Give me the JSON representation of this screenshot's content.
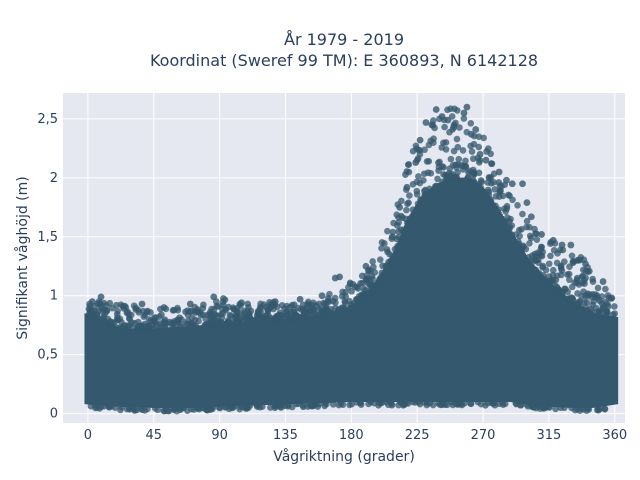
{
  "chart_data": {
    "type": "scatter",
    "title_lines": [
      "År 1979 - 2019",
      "Koordinat (Sweref 99 TM): E 360893, N 6142128"
    ],
    "xlabel": "Vågriktning (grader)",
    "ylabel": "Signifikant våghöjd (m)",
    "xlim": [
      -17,
      367
    ],
    "ylim": [
      -0.08,
      2.72
    ],
    "x_ticks": [
      0,
      45,
      90,
      135,
      180,
      225,
      270,
      315,
      360
    ],
    "x_tick_labels": [
      "0",
      "45",
      "90",
      "135",
      "180",
      "225",
      "270",
      "315",
      "360"
    ],
    "y_ticks": [
      0,
      0.5,
      1,
      1.5,
      2,
      2.5
    ],
    "y_tick_labels": [
      "0",
      "0,5",
      "1",
      "1,5",
      "2",
      "2,5"
    ],
    "grid": true,
    "legend": false,
    "marker_color": "#34586e",
    "plot_background": "#e5e8f0",
    "envelope": {
      "x": [
        0,
        20,
        45,
        70,
        90,
        110,
        135,
        160,
        180,
        195,
        210,
        220,
        230,
        240,
        250,
        260,
        270,
        280,
        290,
        300,
        315,
        330,
        345,
        360
      ],
      "y_min": [
        0.08,
        0.06,
        0.05,
        0.05,
        0.06,
        0.07,
        0.08,
        0.09,
        0.1,
        0.1,
        0.1,
        0.1,
        0.1,
        0.1,
        0.1,
        0.1,
        0.1,
        0.1,
        0.1,
        0.08,
        0.06,
        0.05,
        0.05,
        0.08
      ],
      "y_dense_max": [
        0.85,
        0.72,
        0.72,
        0.74,
        0.76,
        0.78,
        0.8,
        0.84,
        0.9,
        1.05,
        1.35,
        1.65,
        1.85,
        1.95,
        2.0,
        2.0,
        1.9,
        1.72,
        1.5,
        1.3,
        1.1,
        0.95,
        0.85,
        0.82
      ],
      "y_outlier_max": [
        0.98,
        0.93,
        0.9,
        0.9,
        0.99,
        0.94,
        0.95,
        0.99,
        1.15,
        1.3,
        1.75,
        2.2,
        2.45,
        2.55,
        2.6,
        2.55,
        2.35,
        2.1,
        1.85,
        1.65,
        1.48,
        1.4,
        1.25,
        0.95
      ]
    },
    "outlier_points": [
      {
        "x": 231,
        "y": 2.47
      },
      {
        "x": 235,
        "y": 2.45
      },
      {
        "x": 238,
        "y": 2.58
      },
      {
        "x": 242,
        "y": 2.52
      },
      {
        "x": 246,
        "y": 2.49
      },
      {
        "x": 250,
        "y": 2.43
      },
      {
        "x": 257,
        "y": 2.55
      },
      {
        "x": 259,
        "y": 2.6
      },
      {
        "x": 265,
        "y": 2.41
      },
      {
        "x": 262,
        "y": 2.37
      },
      {
        "x": 268,
        "y": 2.2
      },
      {
        "x": 272,
        "y": 2.15
      },
      {
        "x": 276,
        "y": 2.12
      },
      {
        "x": 281,
        "y": 2.05
      },
      {
        "x": 286,
        "y": 1.98
      },
      {
        "x": 290,
        "y": 1.95
      },
      {
        "x": 297,
        "y": 1.95
      },
      {
        "x": 300,
        "y": 1.79
      },
      {
        "x": 303,
        "y": 1.67
      },
      {
        "x": 310,
        "y": 1.52
      },
      {
        "x": 318,
        "y": 1.47
      },
      {
        "x": 324,
        "y": 1.43
      },
      {
        "x": 330,
        "y": 1.43
      },
      {
        "x": 335,
        "y": 1.3
      },
      {
        "x": 340,
        "y": 1.27
      },
      {
        "x": 352,
        "y": 1.12
      },
      {
        "x": 358,
        "y": 0.98
      },
      {
        "x": 227,
        "y": 2.32
      },
      {
        "x": 224,
        "y": 2.13
      },
      {
        "x": 218,
        "y": 1.92
      },
      {
        "x": 213,
        "y": 1.75
      },
      {
        "x": 208,
        "y": 1.5
      },
      {
        "x": 190,
        "y": 1.25
      },
      {
        "x": 172,
        "y": 1.16
      },
      {
        "x": 169,
        "y": 1.15
      },
      {
        "x": 160,
        "y": 1.0
      },
      {
        "x": 145,
        "y": 0.97
      },
      {
        "x": 128,
        "y": 0.95
      },
      {
        "x": 105,
        "y": 0.94
      },
      {
        "x": 86,
        "y": 0.99
      },
      {
        "x": 70,
        "y": 0.93
      },
      {
        "x": 52,
        "y": 0.9
      },
      {
        "x": 37,
        "y": 0.93
      },
      {
        "x": 24,
        "y": 0.91
      },
      {
        "x": 9,
        "y": 0.99
      },
      {
        "x": 3,
        "y": 0.95
      }
    ]
  }
}
